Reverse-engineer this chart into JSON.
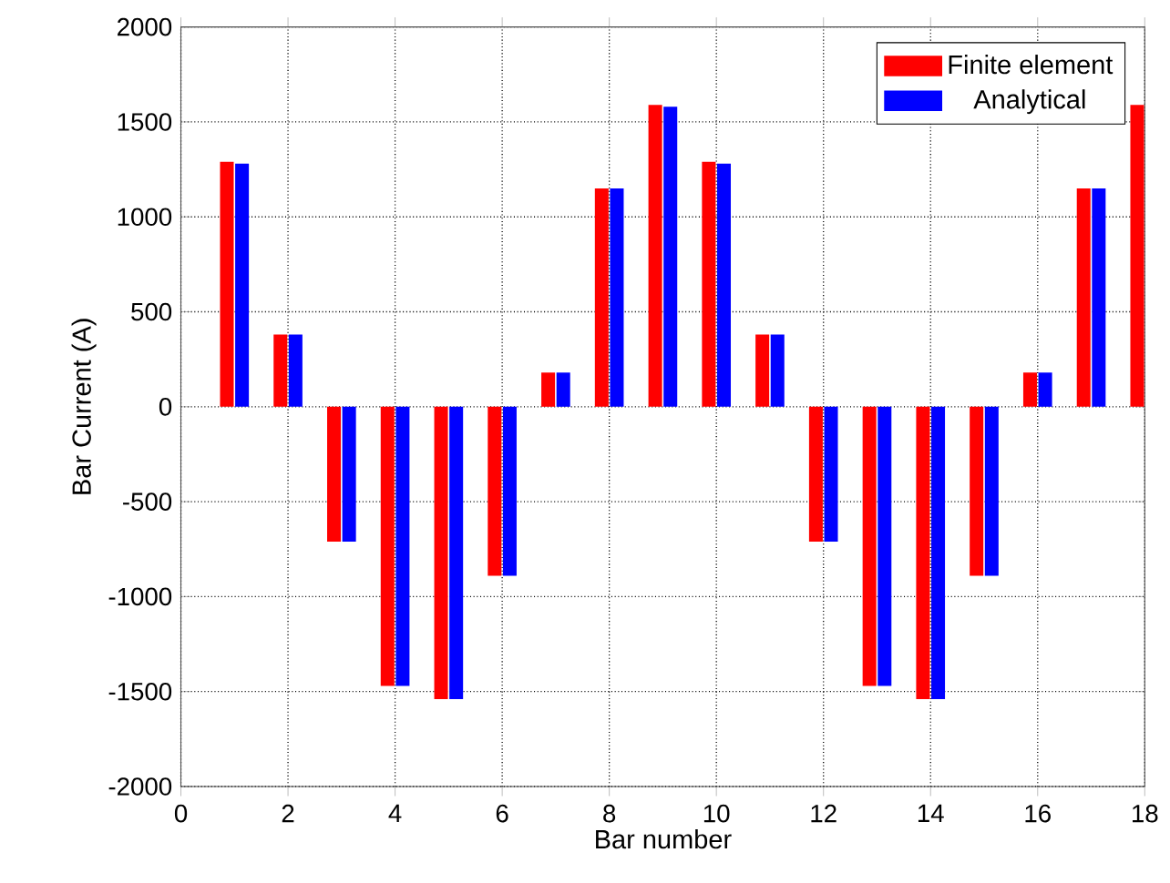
{
  "chart_data": {
    "type": "bar",
    "xlabel": "Bar number",
    "ylabel": "Bar Current  (A)",
    "x": [
      1,
      2,
      3,
      4,
      5,
      6,
      7,
      8,
      9,
      10,
      11,
      12,
      13,
      14,
      15,
      16,
      17,
      18
    ],
    "series": [
      {
        "name": "Finite element",
        "color": "#ff0000",
        "values": [
          1290,
          380,
          -710,
          -1470,
          -1540,
          -890,
          180,
          1150,
          1590,
          1290,
          380,
          -710,
          -1470,
          -1540,
          -890,
          180,
          1150,
          1590
        ]
      },
      {
        "name": "Analytical",
        "color": "#0000ff",
        "values": [
          1280,
          380,
          -710,
          -1470,
          -1540,
          -890,
          180,
          1150,
          1580,
          1280,
          380,
          -710,
          -1470,
          -1540,
          -890,
          180,
          1150,
          null
        ]
      }
    ],
    "xlim": [
      0,
      18
    ],
    "xticks": [
      0,
      2,
      4,
      6,
      8,
      10,
      12,
      14,
      16,
      18
    ],
    "ylim": [
      -2000,
      2000
    ],
    "yticks": [
      -2000,
      -1500,
      -1000,
      -500,
      0,
      500,
      1000,
      1500,
      2000
    ],
    "grid": true,
    "legend": "top right"
  }
}
